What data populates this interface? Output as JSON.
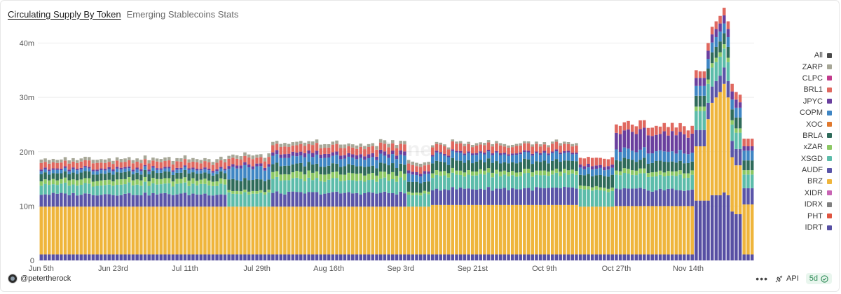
{
  "header": {
    "title": "Circulating Supply By Token",
    "subtitle": "Emerging Stablecoins Stats"
  },
  "footer": {
    "author": "@petertherock",
    "api_label": "API",
    "refresh": "5d",
    "more_icon": "more-horizontal-icon"
  },
  "chart_data": {
    "type": "bar",
    "stacked": true,
    "ylim": [
      0,
      42000000
    ],
    "yticks": [
      0,
      10000000,
      20000000,
      30000000,
      40000000
    ],
    "ytick_labels": [
      "0",
      "10m",
      "20m",
      "30m",
      "40m"
    ],
    "xtick_labels": [
      "Jun 5th",
      "Jun 23rd",
      "Jul 11th",
      "Jul 29th",
      "Aug 16th",
      "Sep 3rd",
      "Sep 21st",
      "Oct 9th",
      "Oct 27th",
      "Nov 14th"
    ],
    "xtick_positions": [
      0,
      18,
      36,
      54,
      72,
      90,
      108,
      126,
      144,
      162
    ],
    "bar_count": 179,
    "legend": [
      "All",
      "ZARP",
      "CLPC",
      "BRL1",
      "JPYC",
      "COPM",
      "XOC",
      "BRLA",
      "xZAR",
      "XSGD",
      "AUDF",
      "BRZ",
      "XIDR",
      "IDRX",
      "PHT",
      "IDRT"
    ],
    "colors": {
      "All": "#4a4a4a",
      "ZARP": "#a7a797",
      "CLPC": "#c23a8c",
      "BRL1": "#e0685f",
      "JPYC": "#6a3f9e",
      "COPM": "#3f86c4",
      "XOC": "#e0792e",
      "BRLA": "#2f6b5a",
      "xZAR": "#8cc864",
      "XSGD": "#5cbcaa",
      "AUDF": "#5a55a8",
      "BRZ": "#efb53c",
      "XIDR": "#c864b4",
      "IDRX": "#808080",
      "PHT": "#e05540",
      "IDRT": "#574fa3"
    },
    "series_order_bottom_to_top": [
      "IDRT",
      "PHT",
      "BRZ",
      "AUDF",
      "XSGD",
      "xZAR",
      "BRLA",
      "COPM",
      "JPYC",
      "BRL1",
      "ZARP"
    ],
    "periods": [
      {
        "from": 0,
        "to": 47,
        "IDRT": 1100000,
        "BRZ": 8800000,
        "AUDF": 2300000,
        "XSGD": 1800000,
        "xZAR": 900000,
        "BRLA": 1200000,
        "COPM": 600000,
        "JPYC": 300000,
        "BRL1": 1100000,
        "ZARP": 600000
      },
      {
        "from": 47,
        "to": 58,
        "IDRT": 1100000,
        "BRZ": 8800000,
        "AUDF": 0,
        "XSGD": 2500000,
        "xZAR": 500000,
        "BRLA": 2000000,
        "COPM": 2200000,
        "JPYC": 500000,
        "BRL1": 1200000,
        "ZARP": 600000
      },
      {
        "from": 58,
        "to": 92,
        "IDRT": 1100000,
        "BRZ": 8800000,
        "AUDF": 2500000,
        "XSGD": 2400000,
        "xZAR": 1200000,
        "BRLA": 1500000,
        "COPM": 1500000,
        "JPYC": 700000,
        "BRL1": 1300000,
        "ZARP": 600000
      },
      {
        "from": 92,
        "to": 98,
        "IDRT": 1100000,
        "BRZ": 8800000,
        "AUDF": 0,
        "XSGD": 2300000,
        "xZAR": 500000,
        "BRLA": 1800000,
        "COPM": 1400000,
        "JPYC": 500000,
        "BRL1": 1200000,
        "ZARP": 600000
      },
      {
        "from": 98,
        "to": 135,
        "IDRT": 1100000,
        "BRZ": 9100000,
        "AUDF": 3000000,
        "XSGD": 2500000,
        "xZAR": 800000,
        "BRLA": 1700000,
        "COPM": 1400000,
        "JPYC": 300000,
        "BRL1": 1300000,
        "ZARP": 400000
      },
      {
        "from": 135,
        "to": 144,
        "IDRT": 1100000,
        "BRZ": 8800000,
        "AUDF": 0,
        "XSGD": 3000000,
        "xZAR": 600000,
        "BRLA": 2200000,
        "COPM": 1200000,
        "JPYC": 600000,
        "BRL1": 1400000,
        "ZARP": 0
      },
      {
        "from": 144,
        "to": 164,
        "IDRT": 1100000,
        "BRZ": 8900000,
        "AUDF": 3000000,
        "XSGD": 2600000,
        "xZAR": 800000,
        "BRLA": 1800000,
        "COPM": 1800000,
        "JPYC": 3400000,
        "BRL1": 1500000,
        "ZARP": 0
      }
    ],
    "tail_bars": [
      {
        "IDRT": 11000000,
        "BRZ": 10000000,
        "AUDF": 3000000,
        "XSGD": 3500000,
        "xZAR": 800000,
        "BRLA": 2000000,
        "COPM": 1800000,
        "JPYC": 1500000,
        "BRL1": 1400000,
        "ZARP": 0
      },
      {
        "IDRT": 11000000,
        "BRZ": 10000000,
        "AUDF": 3000000,
        "XSGD": 3500000,
        "xZAR": 800000,
        "BRLA": 2000000,
        "COPM": 1800000,
        "JPYC": 1500000,
        "BRL1": 1200000,
        "ZARP": 0
      },
      {
        "IDRT": 11000000,
        "BRZ": 10000000,
        "AUDF": 3000000,
        "XSGD": 3500000,
        "xZAR": 800000,
        "BRLA": 2000000,
        "COPM": 1800000,
        "JPYC": 1500000,
        "BRL1": 1200000,
        "ZARP": 0
      },
      {
        "IDRT": 11000000,
        "BRZ": 15000000,
        "AUDF": 3000000,
        "XSGD": 3500000,
        "xZAR": 800000,
        "BRLA": 2000000,
        "COPM": 1800000,
        "JPYC": 1500000,
        "BRL1": 1400000,
        "ZARP": 0
      },
      {
        "IDRT": 12000000,
        "BRZ": 17000000,
        "AUDF": 3000000,
        "XSGD": 3500000,
        "xZAR": 800000,
        "BRLA": 2000000,
        "COPM": 1800000,
        "JPYC": 1500000,
        "BRL1": 1400000,
        "ZARP": 0
      },
      {
        "IDRT": 12000000,
        "BRZ": 18000000,
        "AUDF": 3000000,
        "XSGD": 3500000,
        "xZAR": 800000,
        "BRLA": 2000000,
        "COPM": 1800000,
        "JPYC": 1500000,
        "BRL1": 1400000,
        "ZARP": 0
      },
      {
        "IDRT": 12000000,
        "BRZ": 19000000,
        "AUDF": 3000000,
        "XSGD": 3500000,
        "xZAR": 800000,
        "BRLA": 2000000,
        "COPM": 1800000,
        "JPYC": 1500000,
        "BRL1": 1400000,
        "ZARP": 0
      },
      {
        "IDRT": 12500000,
        "BRZ": 20000000,
        "AUDF": 3000000,
        "XSGD": 3500000,
        "xZAR": 800000,
        "BRLA": 2000000,
        "COPM": 1800000,
        "JPYC": 1500000,
        "BRL1": 1400000,
        "ZARP": 0
      },
      {
        "IDRT": 12000000,
        "BRZ": 18000000,
        "AUDF": 3000000,
        "XSGD": 3500000,
        "xZAR": 800000,
        "BRLA": 2000000,
        "COPM": 1800000,
        "JPYC": 1500000,
        "BRL1": 1400000,
        "ZARP": 0
      },
      {
        "IDRT": 9000000,
        "BRZ": 10000000,
        "AUDF": 3000000,
        "XSGD": 3000000,
        "xZAR": 800000,
        "BRLA": 2000000,
        "COPM": 1800000,
        "JPYC": 1500000,
        "BRL1": 1400000,
        "ZARP": 0
      },
      {
        "IDRT": 8500000,
        "BRZ": 9000000,
        "AUDF": 3000000,
        "XSGD": 3000000,
        "xZAR": 800000,
        "BRLA": 2000000,
        "COPM": 1800000,
        "JPYC": 1500000,
        "BRL1": 1400000,
        "ZARP": 0
      },
      {
        "IDRT": 8500000,
        "BRZ": 9000000,
        "AUDF": 3000000,
        "XSGD": 3000000,
        "xZAR": 800000,
        "BRLA": 2000000,
        "COPM": 1800000,
        "JPYC": 1000000,
        "BRL1": 1400000,
        "ZARP": 0
      },
      {
        "IDRT": 1100000,
        "BRZ": 9200000,
        "AUDF": 3000000,
        "XSGD": 2500000,
        "xZAR": 800000,
        "BRLA": 1800000,
        "COPM": 1800000,
        "JPYC": 800000,
        "BRL1": 1400000,
        "ZARP": 0
      },
      {
        "IDRT": 1100000,
        "BRZ": 9200000,
        "AUDF": 3000000,
        "XSGD": 2500000,
        "xZAR": 800000,
        "BRLA": 1800000,
        "COPM": 1800000,
        "JPYC": 800000,
        "BRL1": 1400000,
        "ZARP": 0
      },
      {
        "IDRT": 1100000,
        "BRZ": 9200000,
        "AUDF": 3000000,
        "XSGD": 2500000,
        "xZAR": 800000,
        "BRLA": 1800000,
        "COPM": 1800000,
        "JPYC": 800000,
        "BRL1": 1400000,
        "ZARP": 0
      }
    ],
    "watermark": "Dune"
  }
}
